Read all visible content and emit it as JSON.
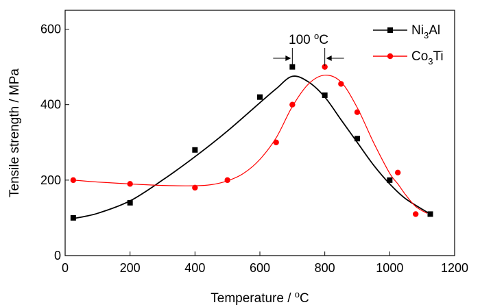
{
  "chart_data": {
    "type": "line",
    "xlabel": "Temperature / °C",
    "ylabel": "Tensile strength / MPa",
    "xlim": [
      0,
      1200
    ],
    "ylim": [
      0,
      650
    ],
    "xticks": [
      0,
      200,
      400,
      600,
      800,
      1000,
      1200
    ],
    "yticks": [
      0,
      200,
      400,
      600
    ],
    "grid": false,
    "legend_position": "top-right",
    "series": [
      {
        "name": "Ni3Al",
        "color": "#000000",
        "marker": "square",
        "x": [
          25,
          200,
          400,
          600,
          700,
          800,
          900,
          1000,
          1125
        ],
        "y": [
          100,
          140,
          280,
          420,
          500,
          425,
          310,
          200,
          110
        ],
        "fit_x": [
          25,
          100,
          200,
          300,
          400,
          500,
          600,
          650,
          700,
          750,
          800,
          850,
          900,
          950,
          1000,
          1050,
          1125
        ],
        "fit_y": [
          98,
          112,
          145,
          200,
          262,
          330,
          405,
          442,
          475,
          460,
          420,
          360,
          300,
          240,
          190,
          150,
          110
        ]
      },
      {
        "name": "Co3Ti",
        "color": "#ff0000",
        "marker": "circle",
        "x": [
          25,
          200,
          400,
          500,
          650,
          700,
          800,
          850,
          900,
          1025,
          1080
        ],
        "y": [
          200,
          190,
          180,
          200,
          300,
          400,
          500,
          455,
          380,
          220,
          110
        ],
        "fit_x": [
          25,
          100,
          200,
          300,
          400,
          450,
          500,
          550,
          600,
          650,
          700,
          750,
          800,
          850,
          900,
          950,
          1000,
          1025,
          1050,
          1080,
          1115
        ],
        "fit_y": [
          200,
          195,
          190,
          186,
          185,
          188,
          198,
          218,
          255,
          312,
          395,
          455,
          478,
          460,
          392,
          300,
          218,
          190,
          160,
          130,
          112
        ]
      }
    ],
    "annotation": {
      "text": "100 °C",
      "from_x": 700,
      "to_x": 800
    }
  }
}
